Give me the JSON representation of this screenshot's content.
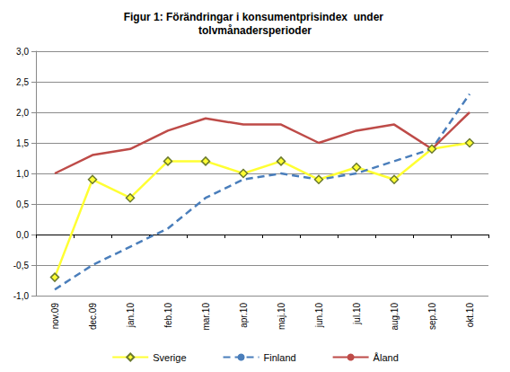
{
  "chart_data": {
    "type": "line",
    "title": "Figur 1: Förändringar i konsumentprisindex  under tolvmånadersperioder",
    "categories": [
      "nov.09",
      "dec.09",
      "jan.10",
      "feb.10",
      "mar.10",
      "apr.10",
      "maj.10",
      "jun.10",
      "jul.10",
      "aug.10",
      "sep.10",
      "okt.10"
    ],
    "series": [
      {
        "name": "Sverige",
        "color": "#ffff33",
        "marker": "diamond",
        "line_style": "solid",
        "values": [
          -0.7,
          0.9,
          0.6,
          1.2,
          1.2,
          1.0,
          1.2,
          0.9,
          1.1,
          0.9,
          1.4,
          1.5
        ]
      },
      {
        "name": "Finland",
        "color": "#4a7ebb",
        "marker": "none",
        "line_style": "dashed",
        "values": [
          -0.9,
          -0.5,
          -0.2,
          0.1,
          0.6,
          0.9,
          1.0,
          0.9,
          1.0,
          1.2,
          1.4,
          2.3
        ]
      },
      {
        "name": "Åland",
        "color": "#be4b48",
        "marker": "none",
        "line_style": "solid",
        "values": [
          1.0,
          1.3,
          1.4,
          1.7,
          1.9,
          1.8,
          1.8,
          1.5,
          1.7,
          1.8,
          1.4,
          2.0
        ]
      }
    ],
    "ylim": [
      -1.0,
      3.0
    ],
    "yticks": [
      {
        "value": -1.0,
        "label": "-1,0"
      },
      {
        "value": -0.5,
        "label": "-0,5"
      },
      {
        "value": 0.0,
        "label": "0,0"
      },
      {
        "value": 0.5,
        "label": "0,5"
      },
      {
        "value": 1.0,
        "label": "1,0"
      },
      {
        "value": 1.5,
        "label": "1,5"
      },
      {
        "value": 2.0,
        "label": "2,0"
      },
      {
        "value": 2.5,
        "label": "2,5"
      },
      {
        "value": 3.0,
        "label": "3,0"
      }
    ],
    "grid": true,
    "legend": "bottom"
  }
}
